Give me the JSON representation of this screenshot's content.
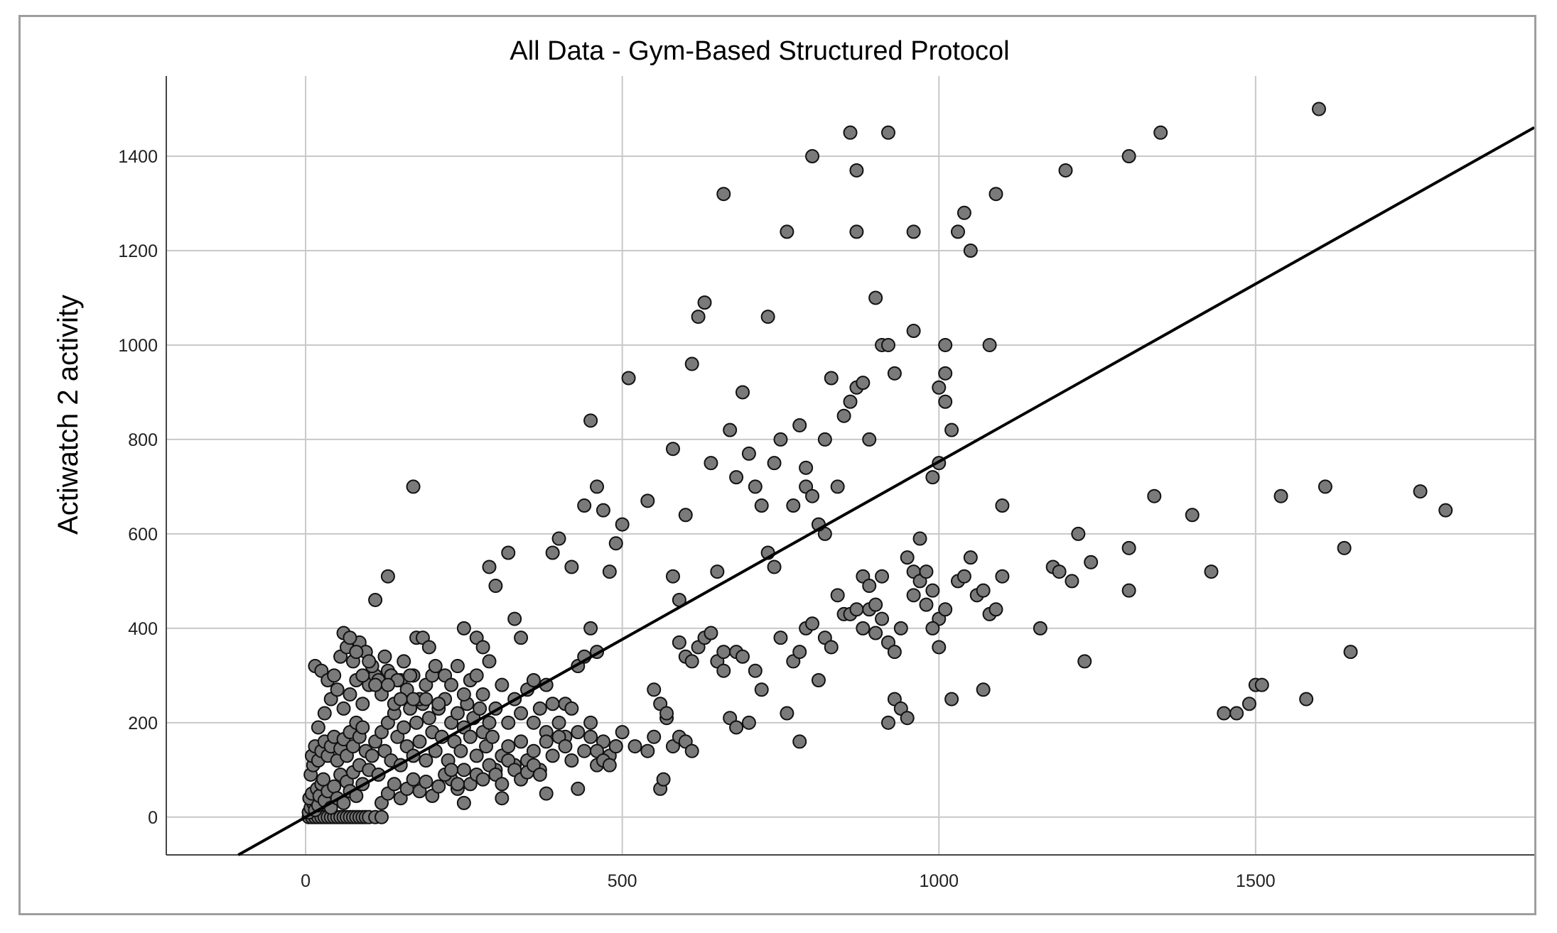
{
  "chart_data": {
    "type": "scatter",
    "title": "All Data - Gym-Based Structured Protocol",
    "xlabel": "",
    "ylabel": "Actiwatch 2 activity",
    "xlim": [
      -220,
      1940
    ],
    "ylim": [
      -80,
      1570
    ],
    "xticks": [
      0,
      500,
      1000,
      1500
    ],
    "yticks": [
      0,
      200,
      400,
      600,
      800,
      1000,
      1200,
      1400
    ],
    "grid": true,
    "reference_line": {
      "slope": 0.753,
      "intercept": 0
    },
    "marker_color": "#7a7a7a",
    "marker_edge": "#111111",
    "points": [
      [
        5,
        0
      ],
      [
        10,
        0
      ],
      [
        15,
        0
      ],
      [
        20,
        0
      ],
      [
        25,
        0
      ],
      [
        30,
        0
      ],
      [
        35,
        0
      ],
      [
        40,
        0
      ],
      [
        45,
        0
      ],
      [
        50,
        0
      ],
      [
        55,
        0
      ],
      [
        60,
        0
      ],
      [
        65,
        0
      ],
      [
        70,
        0
      ],
      [
        75,
        0
      ],
      [
        80,
        0
      ],
      [
        85,
        0
      ],
      [
        90,
        0
      ],
      [
        95,
        0
      ],
      [
        100,
        0
      ],
      [
        110,
        0
      ],
      [
        120,
        0
      ],
      [
        5,
        10
      ],
      [
        8,
        20
      ],
      [
        12,
        30
      ],
      [
        6,
        40
      ],
      [
        15,
        15
      ],
      [
        20,
        25
      ],
      [
        10,
        50
      ],
      [
        18,
        60
      ],
      [
        22,
        45
      ],
      [
        25,
        70
      ],
      [
        30,
        35
      ],
      [
        35,
        55
      ],
      [
        28,
        80
      ],
      [
        40,
        20
      ],
      [
        45,
        65
      ],
      [
        50,
        40
      ],
      [
        55,
        90
      ],
      [
        60,
        30
      ],
      [
        65,
        75
      ],
      [
        70,
        55
      ],
      [
        75,
        95
      ],
      [
        80,
        45
      ],
      [
        85,
        110
      ],
      [
        90,
        70
      ],
      [
        8,
        90
      ],
      [
        12,
        110
      ],
      [
        10,
        130
      ],
      [
        15,
        150
      ],
      [
        20,
        120
      ],
      [
        25,
        140
      ],
      [
        30,
        160
      ],
      [
        35,
        130
      ],
      [
        40,
        150
      ],
      [
        45,
        170
      ],
      [
        50,
        120
      ],
      [
        55,
        145
      ],
      [
        60,
        165
      ],
      [
        65,
        130
      ],
      [
        70,
        180
      ],
      [
        75,
        150
      ],
      [
        80,
        200
      ],
      [
        85,
        170
      ],
      [
        90,
        190
      ],
      [
        95,
        140
      ],
      [
        100,
        100
      ],
      [
        105,
        130
      ],
      [
        110,
        160
      ],
      [
        115,
        90
      ],
      [
        120,
        180
      ],
      [
        125,
        140
      ],
      [
        130,
        200
      ],
      [
        135,
        120
      ],
      [
        140,
        220
      ],
      [
        145,
        170
      ],
      [
        150,
        110
      ],
      [
        155,
        190
      ],
      [
        160,
        150
      ],
      [
        165,
        230
      ],
      [
        170,
        130
      ],
      [
        175,
        200
      ],
      [
        180,
        160
      ],
      [
        185,
        240
      ],
      [
        190,
        120
      ],
      [
        195,
        210
      ],
      [
        200,
        180
      ],
      [
        205,
        140
      ],
      [
        210,
        230
      ],
      [
        215,
        170
      ],
      [
        220,
        250
      ],
      [
        225,
        120
      ],
      [
        230,
        200
      ],
      [
        235,
        160
      ],
      [
        240,
        220
      ],
      [
        245,
        140
      ],
      [
        250,
        190
      ],
      [
        255,
        240
      ],
      [
        260,
        170
      ],
      [
        265,
        210
      ],
      [
        270,
        130
      ],
      [
        275,
        230
      ],
      [
        280,
        180
      ],
      [
        285,
        150
      ],
      [
        290,
        200
      ],
      [
        295,
        170
      ],
      [
        20,
        190
      ],
      [
        30,
        220
      ],
      [
        40,
        250
      ],
      [
        50,
        270
      ],
      [
        60,
        230
      ],
      [
        70,
        260
      ],
      [
        80,
        290
      ],
      [
        90,
        240
      ],
      [
        100,
        280
      ],
      [
        110,
        300
      ],
      [
        120,
        260
      ],
      [
        130,
        310
      ],
      [
        140,
        240
      ],
      [
        150,
        290
      ],
      [
        160,
        270
      ],
      [
        170,
        300
      ],
      [
        180,
        250
      ],
      [
        190,
        280
      ],
      [
        200,
        300
      ],
      [
        210,
        240
      ],
      [
        15,
        320
      ],
      [
        25,
        310
      ],
      [
        35,
        290
      ],
      [
        45,
        300
      ],
      [
        55,
        340
      ],
      [
        65,
        360
      ],
      [
        75,
        330
      ],
      [
        85,
        370
      ],
      [
        95,
        350
      ],
      [
        105,
        320
      ],
      [
        115,
        290
      ],
      [
        125,
        340
      ],
      [
        135,
        300
      ],
      [
        145,
        290
      ],
      [
        155,
        330
      ],
      [
        165,
        300
      ],
      [
        175,
        380
      ],
      [
        185,
        380
      ],
      [
        195,
        360
      ],
      [
        205,
        320
      ],
      [
        60,
        390
      ],
      [
        70,
        380
      ],
      [
        80,
        350
      ],
      [
        90,
        300
      ],
      [
        100,
        330
      ],
      [
        110,
        280
      ],
      [
        130,
        280
      ],
      [
        150,
        250
      ],
      [
        170,
        250
      ],
      [
        190,
        250
      ],
      [
        220,
        300
      ],
      [
        230,
        280
      ],
      [
        240,
        320
      ],
      [
        250,
        260
      ],
      [
        260,
        290
      ],
      [
        270,
        300
      ],
      [
        280,
        260
      ],
      [
        290,
        330
      ],
      [
        300,
        230
      ],
      [
        310,
        280
      ],
      [
        320,
        200
      ],
      [
        330,
        250
      ],
      [
        340,
        220
      ],
      [
        350,
        270
      ],
      [
        360,
        200
      ],
      [
        370,
        230
      ],
      [
        380,
        180
      ],
      [
        390,
        240
      ],
      [
        400,
        200
      ],
      [
        410,
        170
      ],
      [
        300,
        100
      ],
      [
        310,
        130
      ],
      [
        320,
        150
      ],
      [
        330,
        110
      ],
      [
        340,
        160
      ],
      [
        350,
        120
      ],
      [
        360,
        140
      ],
      [
        370,
        100
      ],
      [
        380,
        160
      ],
      [
        390,
        130
      ],
      [
        400,
        170
      ],
      [
        410,
        150
      ],
      [
        420,
        120
      ],
      [
        430,
        180
      ],
      [
        440,
        140
      ],
      [
        450,
        200
      ],
      [
        460,
        110
      ],
      [
        470,
        160
      ],
      [
        480,
        130
      ],
      [
        490,
        150
      ],
      [
        230,
        80
      ],
      [
        240,
        60
      ],
      [
        250,
        100
      ],
      [
        260,
        70
      ],
      [
        270,
        90
      ],
      [
        280,
        80
      ],
      [
        290,
        110
      ],
      [
        300,
        90
      ],
      [
        310,
        70
      ],
      [
        320,
        120
      ],
      [
        330,
        100
      ],
      [
        340,
        80
      ],
      [
        350,
        95
      ],
      [
        360,
        110
      ],
      [
        370,
        90
      ],
      [
        120,
        30
      ],
      [
        130,
        50
      ],
      [
        140,
        70
      ],
      [
        150,
        40
      ],
      [
        160,
        60
      ],
      [
        170,
        80
      ],
      [
        180,
        55
      ],
      [
        190,
        75
      ],
      [
        200,
        45
      ],
      [
        210,
        65
      ],
      [
        220,
        90
      ],
      [
        230,
        100
      ],
      [
        240,
        70
      ],
      [
        250,
        30
      ],
      [
        250,
        400
      ],
      [
        270,
        380
      ],
      [
        280,
        360
      ],
      [
        290,
        530
      ],
      [
        320,
        560
      ],
      [
        330,
        420
      ],
      [
        340,
        380
      ],
      [
        300,
        490
      ],
      [
        130,
        510
      ],
      [
        110,
        460
      ],
      [
        170,
        700
      ],
      [
        360,
        290
      ],
      [
        380,
        280
      ],
      [
        390,
        560
      ],
      [
        400,
        590
      ],
      [
        410,
        240
      ],
      [
        420,
        530
      ],
      [
        430,
        320
      ],
      [
        440,
        340
      ],
      [
        450,
        170
      ],
      [
        460,
        140
      ],
      [
        470,
        120
      ],
      [
        480,
        110
      ],
      [
        490,
        150
      ],
      [
        500,
        180
      ],
      [
        450,
        840
      ],
      [
        460,
        700
      ],
      [
        470,
        650
      ],
      [
        480,
        520
      ],
      [
        490,
        580
      ],
      [
        500,
        620
      ],
      [
        510,
        930
      ],
      [
        440,
        660
      ],
      [
        450,
        400
      ],
      [
        460,
        350
      ],
      [
        420,
        230
      ],
      [
        430,
        60
      ],
      [
        380,
        50
      ],
      [
        310,
        40
      ],
      [
        520,
        150
      ],
      [
        540,
        140
      ],
      [
        550,
        170
      ],
      [
        560,
        60
      ],
      [
        565,
        80
      ],
      [
        570,
        210
      ],
      [
        580,
        150
      ],
      [
        590,
        170
      ],
      [
        600,
        160
      ],
      [
        610,
        140
      ],
      [
        550,
        270
      ],
      [
        560,
        240
      ],
      [
        570,
        220
      ],
      [
        580,
        780
      ],
      [
        590,
        370
      ],
      [
        600,
        340
      ],
      [
        610,
        330
      ],
      [
        620,
        360
      ],
      [
        630,
        380
      ],
      [
        640,
        390
      ],
      [
        650,
        330
      ],
      [
        660,
        310
      ],
      [
        540,
        670
      ],
      [
        580,
        510
      ],
      [
        590,
        460
      ],
      [
        600,
        640
      ],
      [
        610,
        960
      ],
      [
        620,
        1060
      ],
      [
        630,
        1090
      ],
      [
        640,
        750
      ],
      [
        660,
        350
      ],
      [
        670,
        210
      ],
      [
        680,
        350
      ],
      [
        650,
        520
      ],
      [
        660,
        1320
      ],
      [
        670,
        820
      ],
      [
        680,
        720
      ],
      [
        690,
        900
      ],
      [
        700,
        770
      ],
      [
        710,
        700
      ],
      [
        720,
        660
      ],
      [
        730,
        1060
      ],
      [
        740,
        750
      ],
      [
        750,
        800
      ],
      [
        760,
        1240
      ],
      [
        770,
        660
      ],
      [
        780,
        830
      ],
      [
        790,
        740
      ],
      [
        680,
        190
      ],
      [
        690,
        340
      ],
      [
        700,
        200
      ],
      [
        710,
        310
      ],
      [
        720,
        270
      ],
      [
        730,
        560
      ],
      [
        740,
        530
      ],
      [
        750,
        380
      ],
      [
        760,
        220
      ],
      [
        770,
        330
      ],
      [
        780,
        350
      ],
      [
        790,
        400
      ],
      [
        800,
        410
      ],
      [
        810,
        290
      ],
      [
        820,
        600
      ],
      [
        790,
        700
      ],
      [
        800,
        680
      ],
      [
        810,
        620
      ],
      [
        820,
        800
      ],
      [
        830,
        930
      ],
      [
        840,
        700
      ],
      [
        850,
        850
      ],
      [
        860,
        880
      ],
      [
        870,
        910
      ],
      [
        880,
        920
      ],
      [
        890,
        800
      ],
      [
        900,
        1100
      ],
      [
        910,
        1000
      ],
      [
        920,
        1000
      ],
      [
        930,
        940
      ],
      [
        820,
        380
      ],
      [
        830,
        360
      ],
      [
        840,
        470
      ],
      [
        850,
        430
      ],
      [
        860,
        430
      ],
      [
        870,
        440
      ],
      [
        880,
        400
      ],
      [
        890,
        440
      ],
      [
        900,
        390
      ],
      [
        910,
        510
      ],
      [
        920,
        200
      ],
      [
        930,
        250
      ],
      [
        940,
        230
      ],
      [
        950,
        210
      ],
      [
        880,
        510
      ],
      [
        890,
        490
      ],
      [
        900,
        450
      ],
      [
        910,
        420
      ],
      [
        920,
        370
      ],
      [
        930,
        350
      ],
      [
        940,
        400
      ],
      [
        950,
        550
      ],
      [
        960,
        520
      ],
      [
        970,
        500
      ],
      [
        980,
        450
      ],
      [
        990,
        480
      ],
      [
        1000,
        420
      ],
      [
        1010,
        880
      ],
      [
        780,
        160
      ],
      [
        800,
        1400
      ],
      [
        860,
        1450
      ],
      [
        870,
        1370
      ],
      [
        870,
        1240
      ],
      [
        920,
        1450
      ],
      [
        960,
        1240
      ],
      [
        960,
        1030
      ],
      [
        990,
        720
      ],
      [
        1000,
        750
      ],
      [
        1000,
        910
      ],
      [
        1010,
        940
      ],
      [
        1010,
        1000
      ],
      [
        1020,
        820
      ],
      [
        960,
        470
      ],
      [
        970,
        590
      ],
      [
        980,
        520
      ],
      [
        990,
        400
      ],
      [
        1000,
        360
      ],
      [
        1010,
        440
      ],
      [
        1020,
        250
      ],
      [
        1030,
        500
      ],
      [
        1040,
        510
      ],
      [
        1050,
        550
      ],
      [
        1060,
        470
      ],
      [
        1070,
        480
      ],
      [
        1080,
        430
      ],
      [
        1090,
        440
      ],
      [
        1100,
        510
      ],
      [
        1030,
        1240
      ],
      [
        1040,
        1280
      ],
      [
        1050,
        1200
      ],
      [
        1080,
        1000
      ],
      [
        1090,
        1320
      ],
      [
        1100,
        660
      ],
      [
        1070,
        270
      ],
      [
        1160,
        400
      ],
      [
        1180,
        530
      ],
      [
        1190,
        520
      ],
      [
        1200,
        1370
      ],
      [
        1210,
        500
      ],
      [
        1220,
        600
      ],
      [
        1230,
        330
      ],
      [
        1240,
        540
      ],
      [
        1300,
        1400
      ],
      [
        1300,
        570
      ],
      [
        1300,
        480
      ],
      [
        1340,
        680
      ],
      [
        1350,
        1450
      ],
      [
        1400,
        640
      ],
      [
        1430,
        520
      ],
      [
        1450,
        220
      ],
      [
        1470,
        220
      ],
      [
        1490,
        240
      ],
      [
        1500,
        280
      ],
      [
        1510,
        280
      ],
      [
        1540,
        680
      ],
      [
        1580,
        250
      ],
      [
        1600,
        1500
      ],
      [
        1610,
        700
      ],
      [
        1640,
        570
      ],
      [
        1650,
        350
      ],
      [
        1760,
        690
      ],
      [
        1800,
        650
      ]
    ]
  }
}
